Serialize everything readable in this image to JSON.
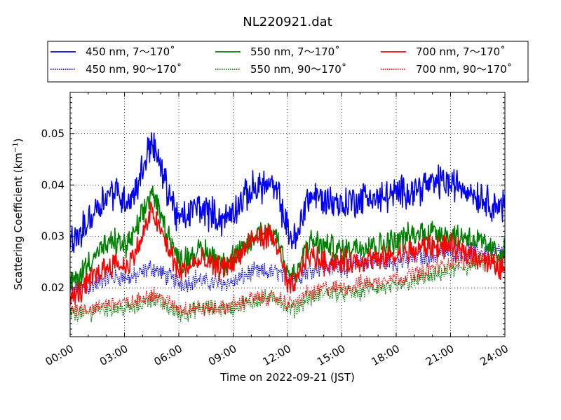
{
  "chart_data": {
    "type": "line",
    "title": "NL220921.dat",
    "xlabel": "Time on 2022-09-21 (JST)",
    "ylabel_main": "Scattering Coefficient (km",
    "ylabel_exp": "−1",
    "ylabel_close": ")",
    "xlim": [
      0,
      24
    ],
    "ylim": [
      0.0105,
      0.058
    ],
    "x_ticks": [
      {
        "value": 0,
        "label": "00:00"
      },
      {
        "value": 3,
        "label": "03:00"
      },
      {
        "value": 6,
        "label": "06:00"
      },
      {
        "value": 9,
        "label": "09:00"
      },
      {
        "value": 12,
        "label": "12:00"
      },
      {
        "value": 15,
        "label": "15:00"
      },
      {
        "value": 18,
        "label": "18:00"
      },
      {
        "value": 21,
        "label": "21:00"
      },
      {
        "value": 24,
        "label": "24:00"
      }
    ],
    "y_ticks": [
      {
        "value": 0.02,
        "label": "0.02"
      },
      {
        "value": 0.03,
        "label": "0.03"
      },
      {
        "value": 0.04,
        "label": "0.04"
      },
      {
        "value": 0.05,
        "label": "0.05"
      }
    ],
    "grid": true,
    "legend_position": "top",
    "x": [
      0,
      0.5,
      1,
      1.5,
      2,
      2.5,
      3,
      3.5,
      4,
      4.5,
      5,
      5.5,
      6,
      6.5,
      7,
      7.5,
      8,
      8.5,
      9,
      9.5,
      10,
      10.5,
      11,
      11.5,
      12,
      12.5,
      13,
      13.5,
      14,
      14.5,
      15,
      15.5,
      16,
      16.5,
      17,
      17.5,
      18,
      18.5,
      19,
      19.5,
      20,
      20.5,
      21,
      21.5,
      22,
      22.5,
      23,
      23.5,
      24
    ],
    "series": [
      {
        "name": "450 nm, 7～170˚",
        "color": "#0000ff",
        "style": "solid",
        "noise": 0.0026,
        "values": [
          0.029,
          0.03,
          0.033,
          0.036,
          0.038,
          0.039,
          0.037,
          0.038,
          0.043,
          0.049,
          0.043,
          0.038,
          0.033,
          0.034,
          0.036,
          0.035,
          0.034,
          0.033,
          0.035,
          0.037,
          0.039,
          0.04,
          0.04,
          0.038,
          0.031,
          0.029,
          0.037,
          0.038,
          0.037,
          0.037,
          0.036,
          0.037,
          0.037,
          0.038,
          0.037,
          0.038,
          0.038,
          0.039,
          0.039,
          0.04,
          0.04,
          0.041,
          0.04,
          0.04,
          0.039,
          0.038,
          0.037,
          0.036,
          0.036
        ]
      },
      {
        "name": "450 nm, 90～170˚",
        "color": "#0000ff",
        "style": "dotted",
        "noise": 0.0014,
        "values": [
          0.019,
          0.02,
          0.02,
          0.021,
          0.022,
          0.022,
          0.022,
          0.022,
          0.023,
          0.024,
          0.023,
          0.022,
          0.021,
          0.021,
          0.022,
          0.021,
          0.021,
          0.021,
          0.021,
          0.022,
          0.023,
          0.023,
          0.023,
          0.023,
          0.022,
          0.022,
          0.023,
          0.024,
          0.024,
          0.024,
          0.024,
          0.024,
          0.025,
          0.025,
          0.025,
          0.025,
          0.025,
          0.025,
          0.026,
          0.026,
          0.026,
          0.027,
          0.027,
          0.027,
          0.027,
          0.027,
          0.027,
          0.027,
          0.027
        ]
      },
      {
        "name": "550 nm, 7～170˚",
        "color": "#008000",
        "style": "solid",
        "noise": 0.002,
        "values": [
          0.021,
          0.022,
          0.025,
          0.027,
          0.028,
          0.029,
          0.028,
          0.03,
          0.034,
          0.039,
          0.034,
          0.03,
          0.025,
          0.026,
          0.027,
          0.027,
          0.026,
          0.025,
          0.026,
          0.027,
          0.029,
          0.031,
          0.031,
          0.03,
          0.023,
          0.022,
          0.028,
          0.029,
          0.028,
          0.028,
          0.027,
          0.028,
          0.028,
          0.029,
          0.028,
          0.029,
          0.029,
          0.03,
          0.03,
          0.031,
          0.031,
          0.031,
          0.03,
          0.03,
          0.03,
          0.029,
          0.028,
          0.027,
          0.027
        ]
      },
      {
        "name": "550 nm, 90～170˚",
        "color": "#008000",
        "style": "dotted",
        "noise": 0.0013,
        "values": [
          0.015,
          0.015,
          0.015,
          0.016,
          0.016,
          0.016,
          0.016,
          0.016,
          0.017,
          0.018,
          0.017,
          0.016,
          0.015,
          0.015,
          0.016,
          0.016,
          0.016,
          0.016,
          0.016,
          0.017,
          0.017,
          0.018,
          0.018,
          0.018,
          0.016,
          0.016,
          0.018,
          0.018,
          0.019,
          0.019,
          0.019,
          0.019,
          0.019,
          0.02,
          0.02,
          0.02,
          0.02,
          0.021,
          0.021,
          0.022,
          0.022,
          0.023,
          0.023,
          0.024,
          0.024,
          0.025,
          0.025,
          0.025,
          0.026
        ]
      },
      {
        "name": "700 nm, 7～170˚",
        "color": "#ff0000",
        "style": "solid",
        "noise": 0.0019,
        "values": [
          0.018,
          0.019,
          0.021,
          0.023,
          0.024,
          0.025,
          0.024,
          0.026,
          0.03,
          0.035,
          0.031,
          0.027,
          0.023,
          0.024,
          0.025,
          0.025,
          0.024,
          0.024,
          0.025,
          0.027,
          0.029,
          0.03,
          0.03,
          0.028,
          0.02,
          0.021,
          0.026,
          0.026,
          0.025,
          0.025,
          0.025,
          0.025,
          0.025,
          0.026,
          0.025,
          0.026,
          0.026,
          0.027,
          0.027,
          0.028,
          0.028,
          0.028,
          0.028,
          0.027,
          0.027,
          0.026,
          0.025,
          0.024,
          0.024
        ]
      },
      {
        "name": "700 nm, 90～170˚",
        "color": "#ff0000",
        "style": "dotted",
        "noise": 0.0012,
        "values": [
          0.016,
          0.016,
          0.016,
          0.016,
          0.017,
          0.017,
          0.017,
          0.017,
          0.018,
          0.019,
          0.018,
          0.017,
          0.016,
          0.016,
          0.016,
          0.016,
          0.016,
          0.016,
          0.017,
          0.017,
          0.018,
          0.018,
          0.018,
          0.018,
          0.017,
          0.017,
          0.019,
          0.019,
          0.02,
          0.02,
          0.02,
          0.02,
          0.021,
          0.021,
          0.021,
          0.022,
          0.022,
          0.022,
          0.023,
          0.023,
          0.024,
          0.024,
          0.025,
          0.025,
          0.025,
          0.026,
          0.026,
          0.026,
          0.026
        ]
      }
    ]
  }
}
